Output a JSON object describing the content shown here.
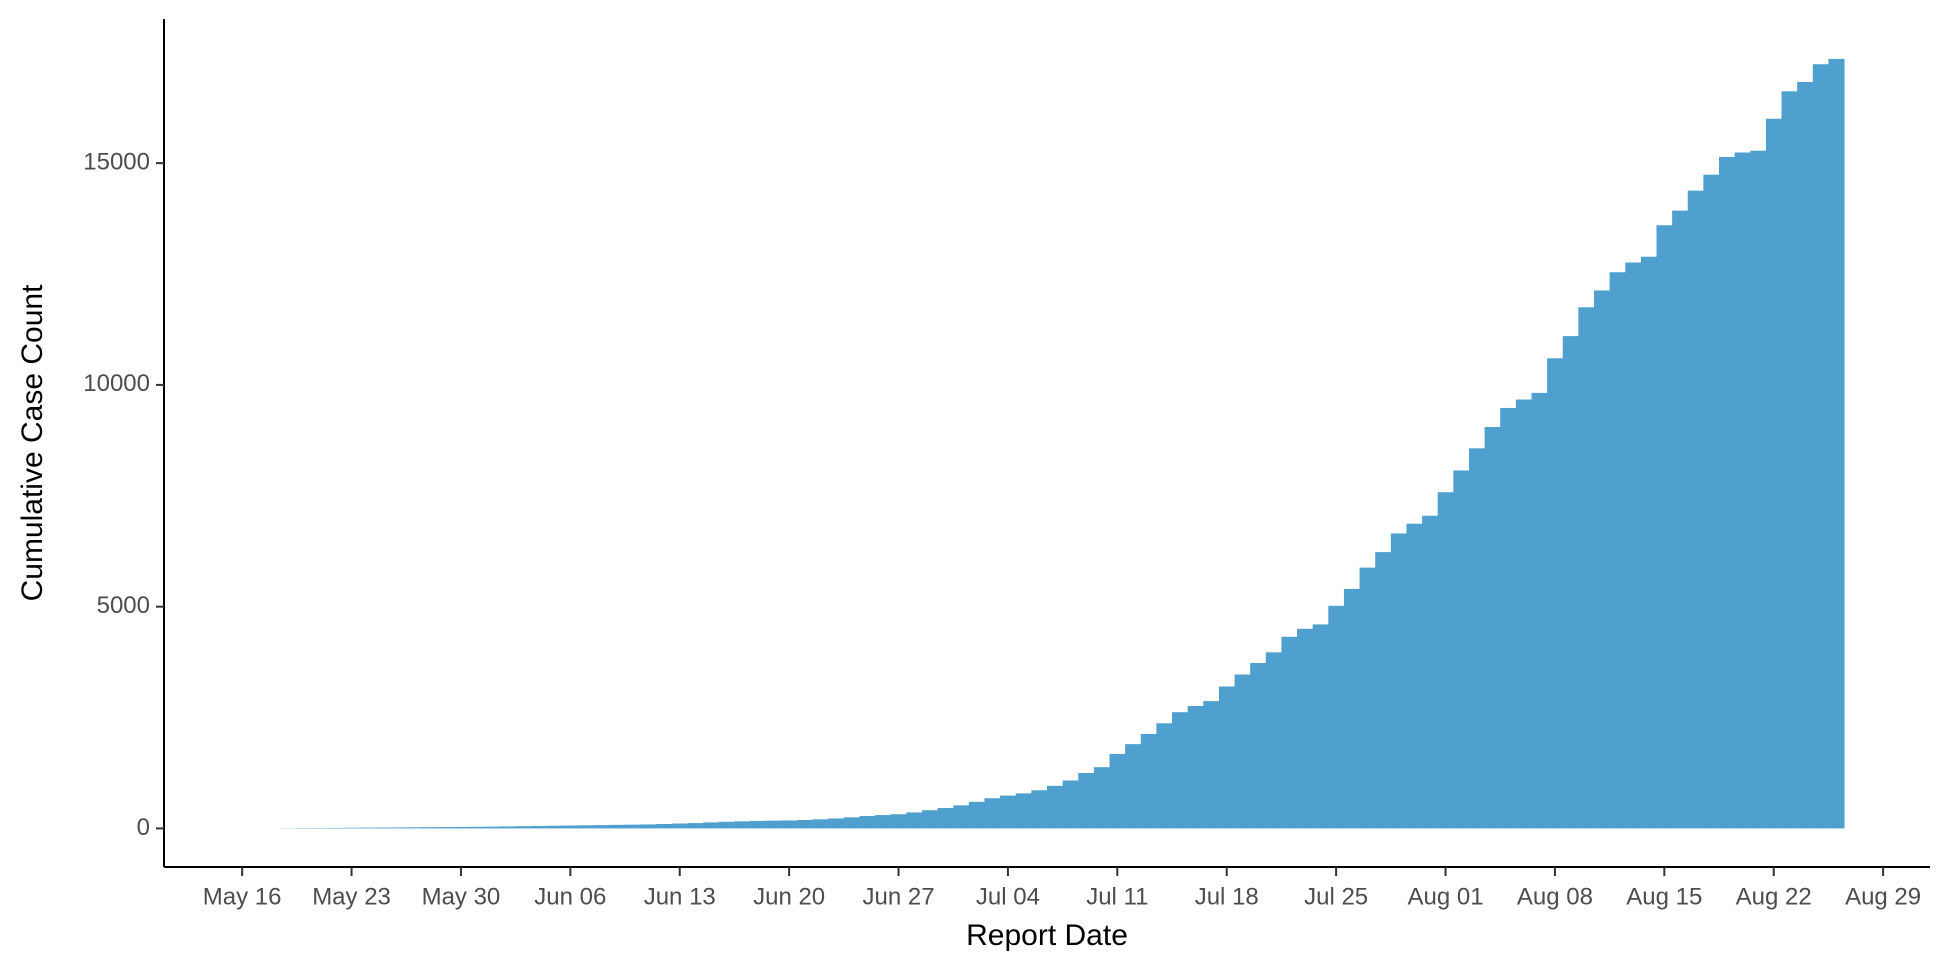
{
  "chart_data": {
    "type": "bar",
    "x_label": "Report Date",
    "y_label": "Cumulative Case Count",
    "color": "#4f9fcf",
    "x": [
      "May 19",
      "May 20",
      "May 21",
      "May 22",
      "May 23",
      "May 24",
      "May 25",
      "May 26",
      "May 27",
      "May 28",
      "May 29",
      "May 30",
      "May 31",
      "Jun 01",
      "Jun 02",
      "Jun 03",
      "Jun 04",
      "Jun 05",
      "Jun 06",
      "Jun 07",
      "Jun 08",
      "Jun 09",
      "Jun 10",
      "Jun 11",
      "Jun 12",
      "Jun 13",
      "Jun 14",
      "Jun 15",
      "Jun 16",
      "Jun 17",
      "Jun 18",
      "Jun 19",
      "Jun 20",
      "Jun 21",
      "Jun 22",
      "Jun 23",
      "Jun 24",
      "Jun 25",
      "Jun 26",
      "Jun 27",
      "Jun 28",
      "Jun 29",
      "Jun 30",
      "Jul 01",
      "Jul 02",
      "Jul 03",
      "Jul 04",
      "Jul 05",
      "Jul 06",
      "Jul 07",
      "Jul 08",
      "Jul 09",
      "Jul 10",
      "Jul 11",
      "Jul 12",
      "Jul 13",
      "Jul 14",
      "Jul 15",
      "Jul 16",
      "Jul 17",
      "Jul 18",
      "Jul 19",
      "Jul 20",
      "Jul 21",
      "Jul 22",
      "Jul 23",
      "Jul 24",
      "Jul 25",
      "Jul 26",
      "Jul 27",
      "Jul 28",
      "Jul 29",
      "Jul 30",
      "Jul 31",
      "Aug 01",
      "Aug 02",
      "Aug 03",
      "Aug 04",
      "Aug 05",
      "Aug 06",
      "Aug 07",
      "Aug 08",
      "Aug 09",
      "Aug 10",
      "Aug 11",
      "Aug 12",
      "Aug 13",
      "Aug 14",
      "Aug 15",
      "Aug 16",
      "Aug 17",
      "Aug 18",
      "Aug 19",
      "Aug 20",
      "Aug 21",
      "Aug 22",
      "Aug 23",
      "Aug 24",
      "Aug 25",
      "Aug 26"
    ],
    "values": [
      5,
      8,
      10,
      12,
      15,
      18,
      20,
      22,
      25,
      28,
      30,
      33,
      36,
      40,
      45,
      50,
      55,
      60,
      65,
      70,
      75,
      80,
      85,
      90,
      100,
      110,
      120,
      135,
      150,
      160,
      170,
      175,
      180,
      190,
      205,
      225,
      250,
      280,
      300,
      320,
      360,
      410,
      460,
      520,
      600,
      680,
      740,
      790,
      860,
      960,
      1080,
      1250,
      1380,
      1680,
      1900,
      2130,
      2370,
      2620,
      2760,
      2870,
      3200,
      3470,
      3730,
      3970,
      4320,
      4500,
      4600,
      5020,
      5400,
      5880,
      6230,
      6650,
      6870,
      7050,
      7580,
      8070,
      8570,
      9050,
      9480,
      9670,
      9820,
      10600,
      11100,
      11750,
      12130,
      12540,
      12760,
      12890,
      13600,
      13930,
      14380,
      14740,
      15140,
      15240,
      15280,
      16000,
      16620,
      16830,
      17230,
      17350
    ],
    "xlim": [
      "May 11",
      "Sep 01"
    ],
    "xticks": [
      "May 16",
      "May 23",
      "May 30",
      "Jun 06",
      "Jun 13",
      "Jun 20",
      "Jun 27",
      "Jul 04",
      "Jul 11",
      "Jul 18",
      "Jul 25",
      "Aug 01",
      "Aug 08",
      "Aug 15",
      "Aug 22",
      "Aug 29"
    ],
    "ylim": [
      -870,
      18250
    ],
    "yticks": [
      0,
      5000,
      10000,
      15000
    ],
    "grid": false
  }
}
